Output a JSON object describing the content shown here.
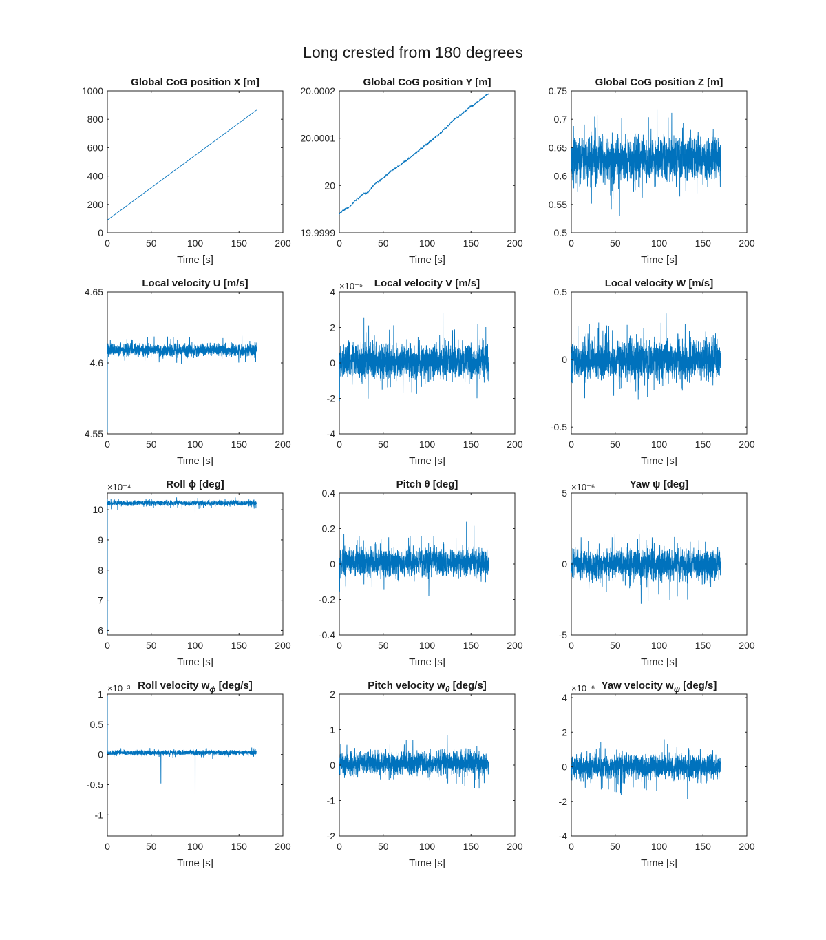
{
  "figure": {
    "title": "Long crested from 180 degrees"
  },
  "style": {
    "line_color": "#0072BD",
    "axis_color": "#262626",
    "background": "#ffffff"
  },
  "chart_data": [
    {
      "type": "line",
      "title": "Global CoG position X [m]",
      "xlabel": "Time [s]",
      "ylabel": "",
      "xlim": [
        0,
        200
      ],
      "ylim": [
        0,
        1000
      ],
      "xticks": [
        0,
        50,
        100,
        150,
        200
      ],
      "xtick_labels": [
        "0",
        "50",
        "100",
        "150",
        "200"
      ],
      "yticks": [
        0,
        200,
        400,
        600,
        800,
        1000
      ],
      "ytick_labels": [
        "0",
        "200",
        "400",
        "600",
        "800",
        "1000"
      ],
      "exponent": "",
      "series": [
        {
          "kind": "linear",
          "x_start": 0,
          "x_end": 170,
          "y_start": 90,
          "y_end": 865
        }
      ]
    },
    {
      "type": "line",
      "title": "Global CoG position Y [m]",
      "xlabel": "Time [s]",
      "ylabel": "",
      "xlim": [
        0,
        200
      ],
      "ylim": [
        19.9999,
        20.0002
      ],
      "xticks": [
        0,
        50,
        100,
        150,
        200
      ],
      "xtick_labels": [
        "0",
        "50",
        "100",
        "150",
        "200"
      ],
      "yticks": [
        19.9999,
        20,
        20.0001,
        20.0002
      ],
      "ytick_labels": [
        "19.9999",
        "20",
        "20.0001",
        "20.0002"
      ],
      "exponent": "",
      "series": [
        {
          "kind": "drift",
          "x_start": 0,
          "x_end": 170,
          "y_start": 19.99994,
          "y_end": 20.000195,
          "noise": 4e-06
        }
      ]
    },
    {
      "type": "line",
      "title": "Global CoG position Z [m]",
      "xlabel": "Time [s]",
      "ylabel": "",
      "xlim": [
        0,
        200
      ],
      "ylim": [
        0.5,
        0.75
      ],
      "xticks": [
        0,
        50,
        100,
        150,
        200
      ],
      "xtick_labels": [
        "0",
        "50",
        "100",
        "150",
        "200"
      ],
      "yticks": [
        0.5,
        0.55,
        0.6,
        0.65,
        0.7,
        0.75
      ],
      "ytick_labels": [
        "0.5",
        "0.55",
        "0.6",
        "0.65",
        "0.7",
        "0.75"
      ],
      "exponent": "",
      "series": [
        {
          "kind": "noise",
          "x_start": 0,
          "x_end": 170,
          "mean": 0.63,
          "amplitude": 0.055,
          "clip": [
            0.53,
            0.75
          ]
        }
      ]
    },
    {
      "type": "line",
      "title": "Local velocity U [m/s]",
      "xlabel": "Time [s]",
      "ylabel": "",
      "xlim": [
        0,
        200
      ],
      "ylim": [
        4.55,
        4.65
      ],
      "xticks": [
        0,
        50,
        100,
        150,
        200
      ],
      "xtick_labels": [
        "0",
        "50",
        "100",
        "150",
        "200"
      ],
      "yticks": [
        4.55,
        4.6,
        4.65
      ],
      "ytick_labels": [
        "4.55",
        "4.6",
        "4.65"
      ],
      "exponent": "",
      "series": [
        {
          "kind": "noise",
          "x_start": 0,
          "x_end": 170,
          "mean": 4.609,
          "amplitude": 0.006,
          "clip": [
            4.59,
            4.626
          ],
          "spike_start": 4.55
        }
      ]
    },
    {
      "type": "line",
      "title": "Local velocity V [m/s]",
      "xlabel": "Time [s]",
      "ylabel": "",
      "xlim": [
        0,
        200
      ],
      "ylim": [
        -4,
        4
      ],
      "xticks": [
        0,
        50,
        100,
        150,
        200
      ],
      "xtick_labels": [
        "0",
        "50",
        "100",
        "150",
        "200"
      ],
      "yticks": [
        -4,
        -2,
        0,
        2,
        4
      ],
      "ytick_labels": [
        "-4",
        "-2",
        "0",
        "2",
        "4"
      ],
      "exponent": "×10⁻⁵",
      "series": [
        {
          "kind": "noise",
          "x_start": 0,
          "x_end": 170,
          "mean": 0.1,
          "amplitude": 1.4,
          "clip": [
            -3.8,
            4
          ]
        }
      ]
    },
    {
      "type": "line",
      "title": "Local velocity W [m/s]",
      "xlabel": "Time [s]",
      "ylabel": "",
      "xlim": [
        0,
        200
      ],
      "ylim": [
        -0.55,
        0.5
      ],
      "xticks": [
        0,
        50,
        100,
        150,
        200
      ],
      "xtick_labels": [
        "0",
        "50",
        "100",
        "150",
        "200"
      ],
      "yticks": [
        -0.5,
        0,
        0.5
      ],
      "ytick_labels": [
        "-0.5",
        "0",
        "0.5"
      ],
      "exponent": "",
      "series": [
        {
          "kind": "noise",
          "x_start": 0,
          "x_end": 170,
          "mean": 0,
          "amplitude": 0.2,
          "clip": [
            -0.52,
            0.5
          ]
        }
      ]
    },
    {
      "type": "line",
      "title": "Roll ϕ [deg]",
      "xlabel": "Time [s]",
      "ylabel": "",
      "xlim": [
        0,
        200
      ],
      "ylim": [
        5.85,
        10.55
      ],
      "xticks": [
        0,
        50,
        100,
        150,
        200
      ],
      "xtick_labels": [
        "0",
        "50",
        "100",
        "150",
        "200"
      ],
      "yticks": [
        6,
        7,
        8,
        9,
        10
      ],
      "ytick_labels": [
        "6",
        "7",
        "8",
        "9",
        "10"
      ],
      "exponent": "×10⁻⁴",
      "series": [
        {
          "kind": "noise",
          "x_start": 0,
          "x_end": 170,
          "mean": 10.22,
          "amplitude": 0.12,
          "clip": [
            9.9,
            10.55
          ],
          "spike_start": 5.9,
          "dips": [
            [
              100,
              9.55
            ]
          ]
        }
      ]
    },
    {
      "type": "line",
      "title": "Pitch θ [deg]",
      "xlabel": "Time [s]",
      "ylabel": "",
      "xlim": [
        0,
        200
      ],
      "ylim": [
        -0.4,
        0.4
      ],
      "xticks": [
        0,
        50,
        100,
        150,
        200
      ],
      "xtick_labels": [
        "0",
        "50",
        "100",
        "150",
        "200"
      ],
      "yticks": [
        -0.4,
        -0.2,
        0,
        0.2,
        0.4
      ],
      "ytick_labels": [
        "-0.4",
        "-0.2",
        "0",
        "0.2",
        "0.4"
      ],
      "exponent": "",
      "series": [
        {
          "kind": "noise",
          "x_start": 0,
          "x_end": 170,
          "mean": 0.01,
          "amplitude": 0.11,
          "clip": [
            -0.3,
            0.39
          ]
        }
      ]
    },
    {
      "type": "line",
      "title": "Yaw ψ [deg]",
      "xlabel": "Time [s]",
      "ylabel": "",
      "xlim": [
        0,
        200
      ],
      "ylim": [
        -5,
        5
      ],
      "xticks": [
        0,
        50,
        100,
        150,
        200
      ],
      "xtick_labels": [
        "0",
        "50",
        "100",
        "150",
        "200"
      ],
      "yticks": [
        -5,
        0,
        5
      ],
      "ytick_labels": [
        "-5",
        "0",
        "5"
      ],
      "exponent": "×10⁻⁶",
      "series": [
        {
          "kind": "noise",
          "x_start": 0,
          "x_end": 170,
          "mean": 0,
          "amplitude": 1.5,
          "clip": [
            -5,
            4.5
          ]
        }
      ]
    },
    {
      "type": "line",
      "title": "Roll velocity w_ϕ [deg/s]",
      "xlabel": "Time [s]",
      "ylabel": "",
      "xlim": [
        0,
        200
      ],
      "ylim": [
        -1.35,
        1
      ],
      "xticks": [
        0,
        50,
        100,
        150,
        200
      ],
      "xtick_labels": [
        "0",
        "50",
        "100",
        "150",
        "200"
      ],
      "yticks": [
        -1,
        -0.5,
        0,
        0.5,
        1
      ],
      "ytick_labels": [
        "-1",
        "-0.5",
        "0",
        "0.5",
        "1"
      ],
      "exponent": "×10⁻³",
      "series": [
        {
          "kind": "noise",
          "x_start": 0,
          "x_end": 170,
          "mean": 0.03,
          "amplitude": 0.06,
          "clip": [
            -0.15,
            0.22
          ],
          "spike_start": 1.0,
          "dips": [
            [
              61,
              -0.48
            ],
            [
              100,
              -1.35
            ]
          ]
        }
      ]
    },
    {
      "type": "line",
      "title": "Pitch velocity w_θ [deg/s]",
      "xlabel": "Time [s]",
      "ylabel": "",
      "xlim": [
        0,
        200
      ],
      "ylim": [
        -2,
        2
      ],
      "xticks": [
        0,
        50,
        100,
        150,
        200
      ],
      "xtick_labels": [
        "0",
        "50",
        "100",
        "150",
        "200"
      ],
      "yticks": [
        -2,
        -1,
        0,
        1,
        2
      ],
      "ytick_labels": [
        "-2",
        "-1",
        "0",
        "1",
        "2"
      ],
      "exponent": "",
      "series": [
        {
          "kind": "noise",
          "x_start": 0,
          "x_end": 170,
          "mean": 0.05,
          "amplitude": 0.45,
          "clip": [
            -1.45,
            1.7
          ]
        }
      ]
    },
    {
      "type": "line",
      "title": "Yaw velocity w_ψ [deg/s]",
      "xlabel": "Time [s]",
      "ylabel": "",
      "xlim": [
        0,
        200
      ],
      "ylim": [
        -4,
        4.2
      ],
      "xticks": [
        0,
        50,
        100,
        150,
        200
      ],
      "xtick_labels": [
        "0",
        "50",
        "100",
        "150",
        "200"
      ],
      "yticks": [
        -4,
        -2,
        0,
        2,
        4
      ],
      "ytick_labels": [
        "-4",
        "-2",
        "0",
        "2",
        "4"
      ],
      "exponent": "×10⁻⁶",
      "series": [
        {
          "kind": "noise",
          "x_start": 0,
          "x_end": 170,
          "mean": 0,
          "amplitude": 1.0,
          "clip": [
            -3.2,
            4.2
          ]
        }
      ]
    }
  ]
}
